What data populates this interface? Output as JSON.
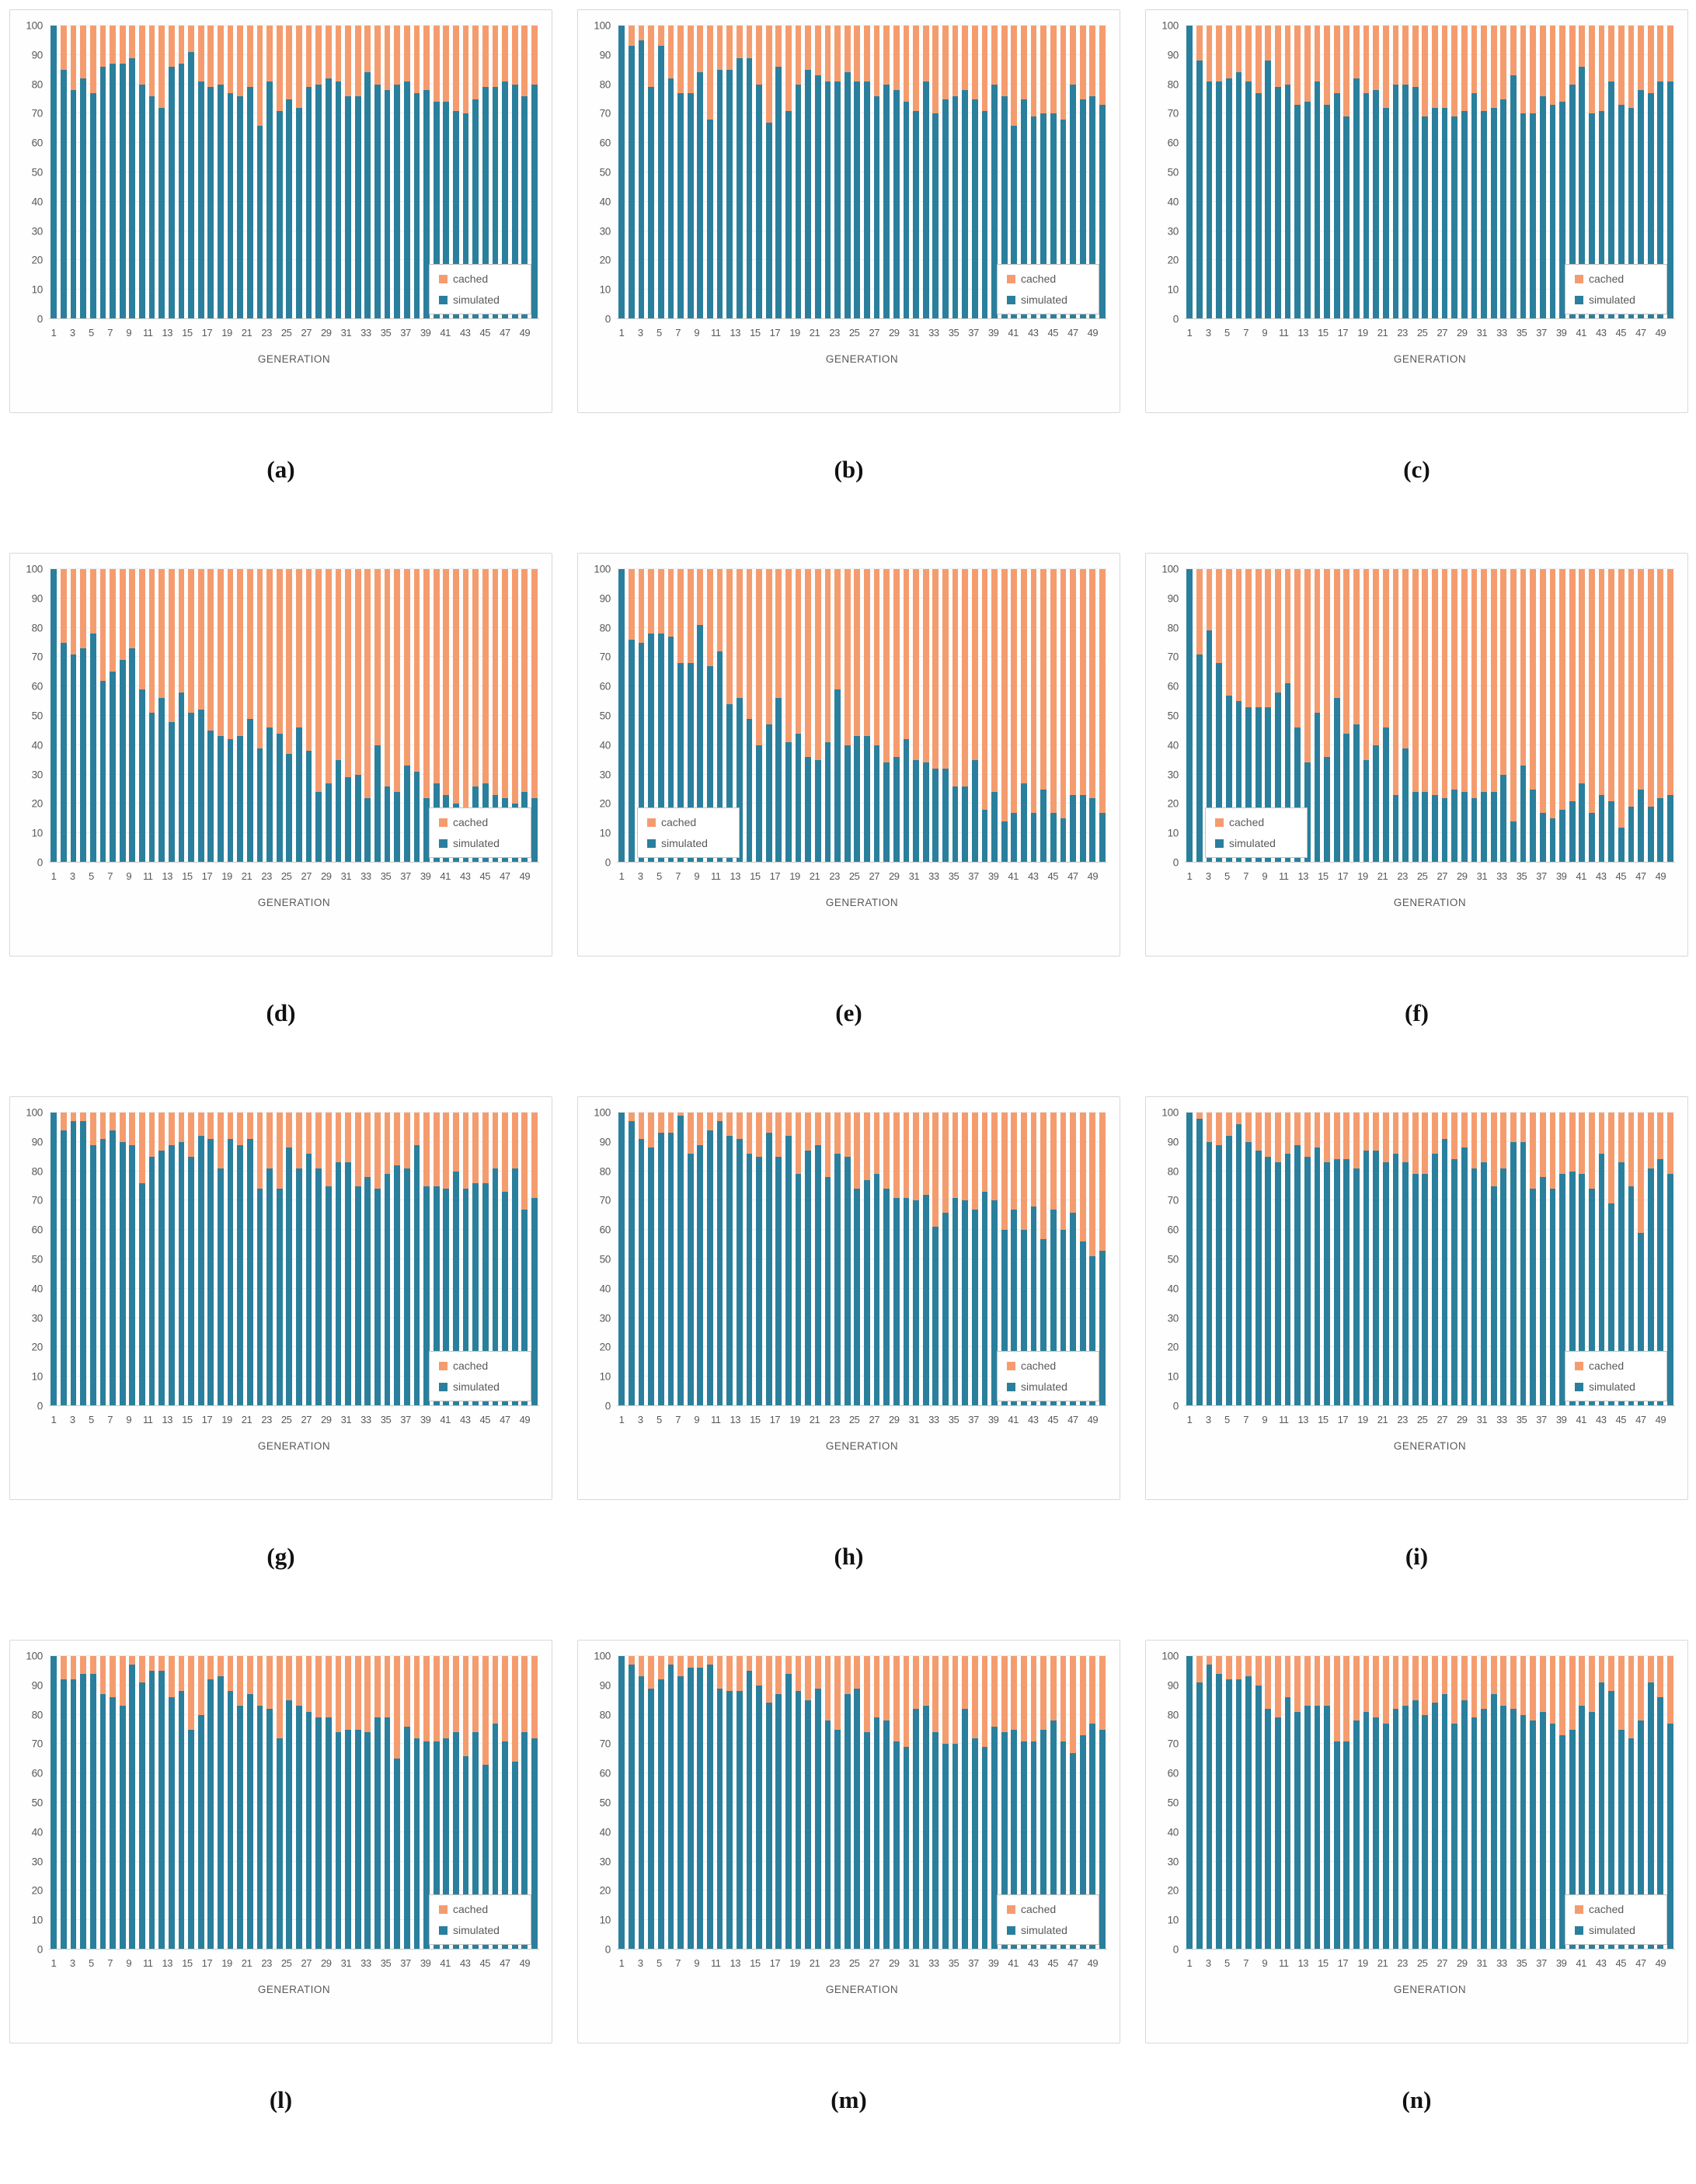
{
  "colors": {
    "simulated": "#2A7F9C",
    "cached": "#F59C6F",
    "axis_text": "#595959",
    "gridline": "#EDEDED",
    "panel_border": "#D8D8D8",
    "legend_border": "#BFBFBF",
    "page_background": "#FFFFFF"
  },
  "legend": {
    "cached_label": "cached",
    "simulated_label": "simulated"
  },
  "axis": {
    "x_title": "GENERATION",
    "y_ticks": [
      0,
      10,
      20,
      30,
      40,
      50,
      60,
      70,
      80,
      90,
      100
    ],
    "x_tick_labels": [
      "1",
      "3",
      "5",
      "7",
      "9",
      "11",
      "13",
      "15",
      "17",
      "19",
      "21",
      "23",
      "25",
      "27",
      "29",
      "31",
      "33",
      "35",
      "37",
      "39",
      "41",
      "43",
      "45",
      "47",
      "49"
    ]
  },
  "chart_meta": {
    "type": "bar",
    "stacked": true,
    "percent_total": 100,
    "note": "cached value for each generation = 100 - simulated value",
    "x_range": [
      1,
      50
    ],
    "ylim": [
      0,
      100
    ],
    "xlabel": "GENERATION",
    "series_order_bottom_to_top": [
      "simulated",
      "cached"
    ]
  },
  "chart_data": [
    {
      "id": "a",
      "panel_label": "(a)",
      "type": "bar",
      "legend_position": "bottom-right",
      "simulated": [
        100,
        85,
        78,
        82,
        77,
        86,
        87,
        87,
        89,
        80,
        76,
        72,
        86,
        87,
        91,
        81,
        79,
        80,
        77,
        76,
        79,
        66,
        81,
        71,
        75,
        72,
        79,
        80,
        82,
        81,
        76,
        76,
        84,
        80,
        78,
        80,
        81,
        77,
        78,
        74,
        74,
        71,
        70,
        75,
        79,
        79,
        81,
        80,
        76,
        80
      ]
    },
    {
      "id": "b",
      "panel_label": "(b)",
      "type": "bar",
      "legend_position": "bottom-right",
      "simulated": [
        100,
        93,
        95,
        79,
        93,
        82,
        77,
        77,
        84,
        68,
        85,
        85,
        89,
        89,
        80,
        67,
        86,
        71,
        80,
        85,
        83,
        81,
        81,
        84,
        81,
        81,
        76,
        80,
        78,
        74,
        71,
        81,
        70,
        75,
        76,
        78,
        75,
        71,
        80,
        76,
        66,
        75,
        69,
        70,
        70,
        68,
        80,
        75,
        76,
        73
      ]
    },
    {
      "id": "c",
      "panel_label": "(c)",
      "type": "bar",
      "legend_position": "bottom-right",
      "simulated": [
        100,
        88,
        81,
        81,
        82,
        84,
        81,
        77,
        88,
        79,
        80,
        73,
        74,
        81,
        73,
        77,
        69,
        82,
        77,
        78,
        72,
        80,
        80,
        79,
        69,
        72,
        72,
        69,
        71,
        77,
        71,
        72,
        75,
        83,
        70,
        70,
        76,
        73,
        74,
        80,
        86,
        70,
        71,
        81,
        73,
        72,
        78,
        77,
        81,
        81
      ]
    },
    {
      "id": "d",
      "panel_label": "(d)",
      "type": "bar",
      "legend_position": "bottom-right",
      "simulated": [
        100,
        75,
        71,
        73,
        78,
        62,
        65,
        69,
        73,
        59,
        51,
        56,
        48,
        58,
        51,
        52,
        45,
        43,
        42,
        43,
        49,
        39,
        46,
        44,
        37,
        46,
        38,
        24,
        27,
        35,
        29,
        30,
        22,
        40,
        26,
        24,
        33,
        31,
        22,
        27,
        23,
        20,
        18,
        26,
        27,
        23,
        22,
        20,
        24,
        22
      ]
    },
    {
      "id": "e",
      "panel_label": "(e)",
      "type": "bar",
      "legend_position": "bottom-left",
      "simulated": [
        100,
        76,
        75,
        78,
        78,
        77,
        68,
        68,
        81,
        67,
        72,
        54,
        56,
        49,
        40,
        47,
        56,
        41,
        44,
        36,
        35,
        41,
        59,
        40,
        43,
        43,
        40,
        34,
        36,
        42,
        35,
        34,
        32,
        32,
        26,
        26,
        35,
        18,
        24,
        14,
        17,
        27,
        17,
        25,
        17,
        15,
        23,
        23,
        22,
        17
      ]
    },
    {
      "id": "f",
      "panel_label": "(f)",
      "type": "bar",
      "legend_position": "bottom-left",
      "simulated": [
        100,
        71,
        79,
        68,
        57,
        55,
        53,
        53,
        53,
        58,
        61,
        46,
        34,
        51,
        36,
        56,
        44,
        47,
        35,
        40,
        46,
        23,
        39,
        24,
        24,
        23,
        22,
        25,
        24,
        22,
        24,
        24,
        30,
        14,
        33,
        25,
        17,
        15,
        18,
        21,
        27,
        17,
        23,
        21,
        12,
        19,
        25,
        19,
        22,
        23
      ]
    },
    {
      "id": "g",
      "panel_label": "(g)",
      "type": "bar",
      "legend_position": "bottom-right",
      "simulated": [
        100,
        94,
        97,
        97,
        89,
        91,
        94,
        90,
        89,
        76,
        85,
        87,
        89,
        90,
        85,
        92,
        91,
        81,
        91,
        89,
        91,
        74,
        81,
        74,
        88,
        81,
        86,
        81,
        75,
        83,
        83,
        75,
        78,
        74,
        79,
        82,
        81,
        89,
        75,
        75,
        74,
        80,
        74,
        76,
        76,
        81,
        73,
        81,
        67,
        71
      ]
    },
    {
      "id": "h",
      "panel_label": "(h)",
      "type": "bar",
      "legend_position": "bottom-right",
      "simulated": [
        100,
        97,
        91,
        88,
        93,
        93,
        99,
        86,
        89,
        94,
        97,
        92,
        91,
        86,
        85,
        93,
        85,
        92,
        79,
        87,
        89,
        78,
        86,
        85,
        74,
        77,
        79,
        74,
        71,
        71,
        70,
        72,
        61,
        66,
        71,
        70,
        67,
        73,
        70,
        60,
        67,
        60,
        68,
        57,
        67,
        60,
        66,
        56,
        51,
        53
      ]
    },
    {
      "id": "i",
      "panel_label": "(i)",
      "type": "bar",
      "legend_position": "bottom-right",
      "simulated": [
        100,
        98,
        90,
        89,
        92,
        96,
        90,
        87,
        85,
        83,
        86,
        89,
        85,
        88,
        83,
        84,
        84,
        81,
        87,
        87,
        83,
        86,
        83,
        79,
        79,
        86,
        91,
        84,
        88,
        81,
        83,
        75,
        81,
        90,
        90,
        74,
        78,
        74,
        79,
        80,
        79,
        74,
        86,
        69,
        83,
        75,
        59,
        81,
        84,
        79
      ]
    },
    {
      "id": "l",
      "panel_label": "(l)",
      "type": "bar",
      "legend_position": "bottom-right",
      "simulated": [
        100,
        92,
        92,
        94,
        94,
        87,
        86,
        83,
        97,
        91,
        95,
        95,
        86,
        88,
        75,
        80,
        92,
        93,
        88,
        83,
        87,
        83,
        82,
        72,
        85,
        83,
        81,
        79,
        79,
        74,
        75,
        75,
        74,
        79,
        79,
        65,
        76,
        72,
        71,
        71,
        72,
        74,
        66,
        74,
        63,
        77,
        71,
        64,
        74,
        72
      ]
    },
    {
      "id": "m",
      "panel_label": "(m)",
      "type": "bar",
      "legend_position": "bottom-right",
      "simulated": [
        100,
        97,
        93,
        89,
        92,
        97,
        93,
        96,
        96,
        97,
        89,
        88,
        88,
        95,
        90,
        84,
        87,
        94,
        88,
        85,
        89,
        78,
        75,
        87,
        89,
        74,
        79,
        78,
        71,
        69,
        82,
        83,
        74,
        70,
        70,
        82,
        72,
        69,
        76,
        74,
        75,
        71,
        71,
        75,
        78,
        71,
        67,
        73,
        77,
        75
      ]
    },
    {
      "id": "n",
      "panel_label": "(n)",
      "type": "bar",
      "legend_position": "bottom-right",
      "simulated": [
        100,
        91,
        97,
        94,
        92,
        92,
        93,
        90,
        82,
        79,
        86,
        81,
        83,
        83,
        83,
        71,
        71,
        78,
        81,
        79,
        77,
        82,
        83,
        85,
        80,
        84,
        87,
        77,
        85,
        79,
        82,
        87,
        83,
        82,
        80,
        78,
        81,
        77,
        73,
        75,
        83,
        81,
        91,
        88,
        75,
        72,
        78,
        91,
        86,
        77
      ]
    }
  ]
}
